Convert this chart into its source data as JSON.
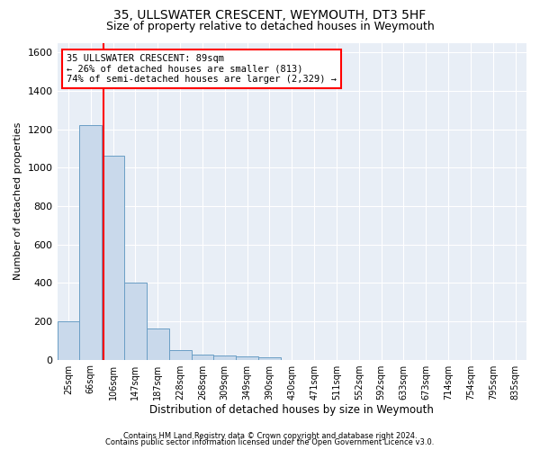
{
  "title1": "35, ULLSWATER CRESCENT, WEYMOUTH, DT3 5HF",
  "title2": "Size of property relative to detached houses in Weymouth",
  "xlabel": "Distribution of detached houses by size in Weymouth",
  "ylabel": "Number of detached properties",
  "categories": [
    "25sqm",
    "66sqm",
    "106sqm",
    "147sqm",
    "187sqm",
    "228sqm",
    "268sqm",
    "309sqm",
    "349sqm",
    "390sqm",
    "430sqm",
    "471sqm",
    "511sqm",
    "552sqm",
    "592sqm",
    "633sqm",
    "673sqm",
    "714sqm",
    "754sqm",
    "795sqm",
    "835sqm"
  ],
  "values": [
    200,
    1220,
    1060,
    400,
    160,
    50,
    25,
    20,
    15,
    10,
    0,
    0,
    0,
    0,
    0,
    0,
    0,
    0,
    0,
    0,
    0
  ],
  "bar_color": "#c9d9eb",
  "bar_edge_color": "#6a9ec5",
  "annotation_line1": "35 ULLSWATER CRESCENT: 89sqm",
  "annotation_line2": "← 26% of detached houses are smaller (813)",
  "annotation_line3": "74% of semi-detached houses are larger (2,329) →",
  "annotation_box_color": "white",
  "annotation_box_edge_color": "red",
  "vline_color": "red",
  "ylim": [
    0,
    1650
  ],
  "yticks": [
    0,
    200,
    400,
    600,
    800,
    1000,
    1200,
    1400,
    1600
  ],
  "footnote1": "Contains HM Land Registry data © Crown copyright and database right 2024.",
  "footnote2": "Contains public sector information licensed under the Open Government Licence v3.0.",
  "background_color": "#e8eef6",
  "grid_color": "white",
  "title1_fontsize": 10,
  "title2_fontsize": 9
}
